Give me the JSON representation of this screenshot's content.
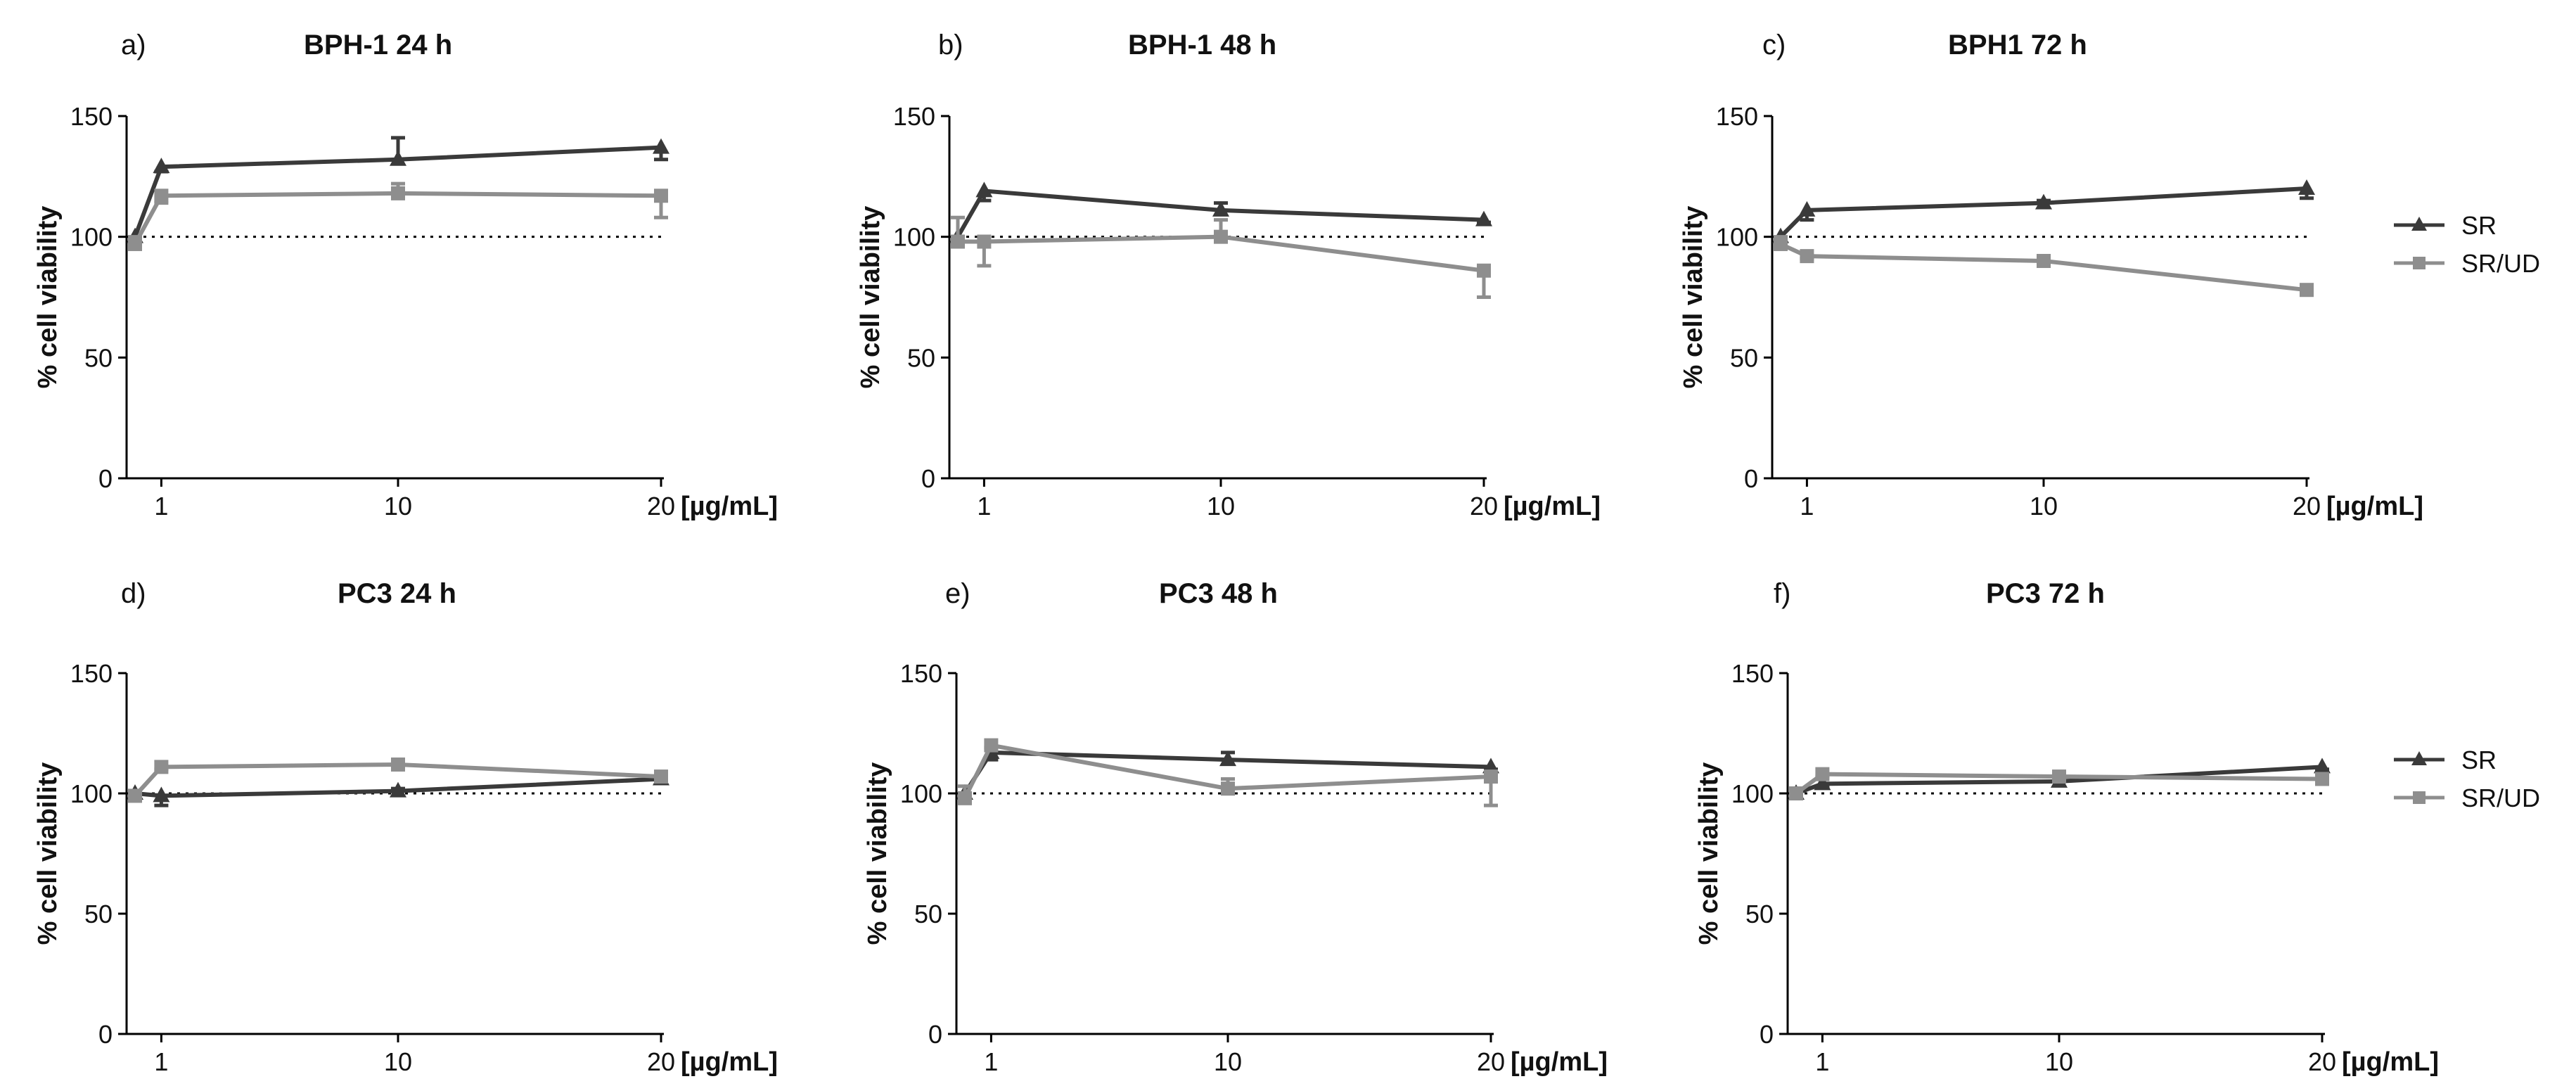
{
  "figure": {
    "x_unit_label": "[µg/mL]",
    "y_axis_label": "% cell viability",
    "series_names": [
      "SR",
      "SR/UD"
    ],
    "colors": {
      "SR": "#3a3a3a",
      "SR/UD": "#8e8e8e",
      "reference_line": "#000000"
    }
  },
  "legends": [
    {
      "items": [
        {
          "label": "SR",
          "marker": "triangle"
        },
        {
          "label": "SR/UD",
          "marker": "square"
        }
      ]
    },
    {
      "items": [
        {
          "label": "SR",
          "marker": "triangle"
        },
        {
          "label": "SR/UD",
          "marker": "square"
        }
      ]
    }
  ],
  "chart_data": [
    {
      "panel": "a)",
      "title": "BPH-1 24 h",
      "type": "line",
      "xlabel": "[µg/mL]",
      "ylabel": "% cell viability",
      "x": [
        0,
        1,
        10,
        20
      ],
      "x_tick_labels": [
        "1",
        "10",
        "20"
      ],
      "ylim": [
        0,
        150
      ],
      "y_ticks": [
        0,
        50,
        100,
        150
      ],
      "reference_line": 100,
      "series": [
        {
          "name": "SR",
          "values": [
            100,
            129,
            132,
            137
          ],
          "errors": [
            0,
            2,
            9,
            5
          ]
        },
        {
          "name": "SR/UD",
          "values": [
            97,
            117,
            118,
            117
          ],
          "errors": [
            3,
            3,
            4,
            9
          ]
        }
      ]
    },
    {
      "panel": "b)",
      "title": "BPH-1 48 h",
      "type": "line",
      "xlabel": "[µg/mL]",
      "ylabel": "% cell viability",
      "x": [
        0,
        1,
        10,
        20
      ],
      "x_tick_labels": [
        "1",
        "10",
        "20"
      ],
      "ylim": [
        0,
        150
      ],
      "y_ticks": [
        0,
        50,
        100,
        150
      ],
      "reference_line": 100,
      "series": [
        {
          "name": "SR",
          "values": [
            100,
            119,
            111,
            107
          ],
          "errors": [
            0,
            4,
            3,
            1
          ]
        },
        {
          "name": "SR/UD",
          "values": [
            98,
            98,
            100,
            86
          ],
          "errors": [
            10,
            10,
            7,
            11
          ]
        }
      ]
    },
    {
      "panel": "c)",
      "title": "BPH1 72 h",
      "type": "line",
      "xlabel": "[µg/mL]",
      "ylabel": "% cell viability",
      "x": [
        0,
        1,
        10,
        20
      ],
      "x_tick_labels": [
        "1",
        "10",
        "20"
      ],
      "ylim": [
        0,
        150
      ],
      "y_ticks": [
        0,
        50,
        100,
        150
      ],
      "reference_line": 100,
      "series": [
        {
          "name": "SR",
          "values": [
            100,
            111,
            114,
            120
          ],
          "errors": [
            0,
            4,
            1,
            4
          ]
        },
        {
          "name": "SR/UD",
          "values": [
            97,
            92,
            90,
            78
          ],
          "errors": [
            3,
            1,
            1,
            1
          ]
        }
      ]
    },
    {
      "panel": "d)",
      "title": "PC3 24 h",
      "type": "line",
      "xlabel": "[µg/mL]",
      "ylabel": "% cell viability",
      "x": [
        0,
        1,
        10,
        20
      ],
      "x_tick_labels": [
        "1",
        "10",
        "20"
      ],
      "ylim": [
        0,
        150
      ],
      "y_ticks": [
        0,
        50,
        100,
        150
      ],
      "reference_line": 100,
      "series": [
        {
          "name": "SR",
          "values": [
            100,
            99,
            101,
            106
          ],
          "errors": [
            0,
            4,
            1,
            1
          ]
        },
        {
          "name": "SR/UD",
          "values": [
            99,
            111,
            112,
            107
          ],
          "errors": [
            1,
            1,
            1,
            1
          ]
        }
      ]
    },
    {
      "panel": "e)",
      "title": "PC3 48 h",
      "type": "line",
      "xlabel": "[µg/mL]",
      "ylabel": "% cell viability",
      "x": [
        0,
        1,
        10,
        20
      ],
      "x_tick_labels": [
        "1",
        "10",
        "20"
      ],
      "ylim": [
        0,
        150
      ],
      "y_ticks": [
        0,
        50,
        100,
        150
      ],
      "reference_line": 100,
      "series": [
        {
          "name": "SR",
          "values": [
            100,
            117,
            114,
            111
          ],
          "errors": [
            0,
            3,
            3,
            1
          ]
        },
        {
          "name": "SR/UD",
          "values": [
            98,
            120,
            102,
            107
          ],
          "errors": [
            5,
            1,
            4,
            12
          ]
        }
      ]
    },
    {
      "panel": "f)",
      "title": "PC3 72 h",
      "type": "line",
      "xlabel": "[µg/mL]",
      "ylabel": "% cell viability",
      "x": [
        0,
        1,
        10,
        20
      ],
      "x_tick_labels": [
        "1",
        "10",
        "20"
      ],
      "ylim": [
        0,
        150
      ],
      "y_ticks": [
        0,
        50,
        100,
        150
      ],
      "reference_line": 100,
      "series": [
        {
          "name": "SR",
          "values": [
            100,
            104,
            105,
            111
          ],
          "errors": [
            0,
            1,
            2,
            1
          ]
        },
        {
          "name": "SR/UD",
          "values": [
            100,
            108,
            107,
            106
          ],
          "errors": [
            0,
            1,
            1,
            1
          ]
        }
      ]
    }
  ]
}
